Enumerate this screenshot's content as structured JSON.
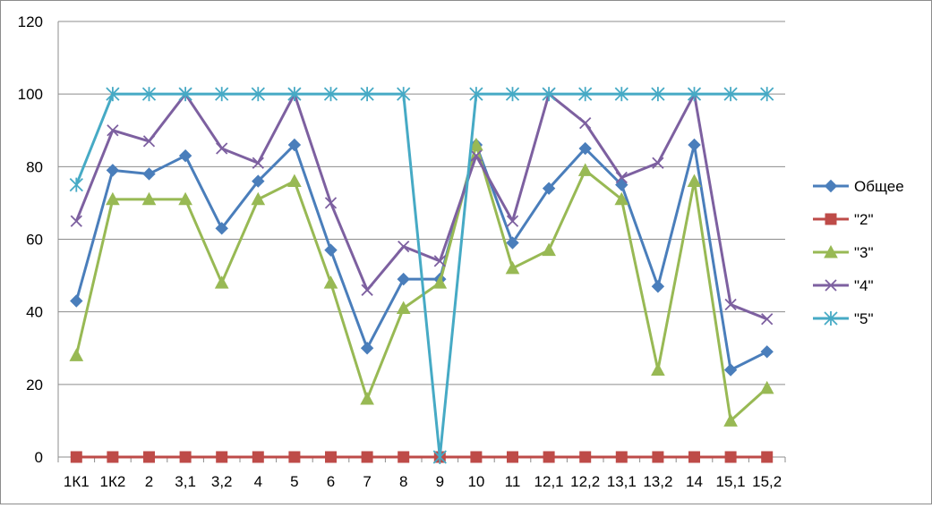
{
  "chart_data": {
    "type": "line",
    "title": "",
    "xlabel": "",
    "ylabel": "",
    "ylim": [
      0,
      120
    ],
    "yticks": [
      "0",
      "20",
      "40",
      "60",
      "80",
      "100",
      "120"
    ],
    "grid": "horizontal",
    "legend_position": "right",
    "categories": [
      "1К1",
      "1К2",
      "2",
      "3,1",
      "3,2",
      "4",
      "5",
      "6",
      "7",
      "8",
      "9",
      "10",
      "11",
      "12,1",
      "12,2",
      "13,1",
      "13,2",
      "14",
      "15,1",
      "15,2"
    ],
    "series": [
      {
        "name": "Общее",
        "color": "#4a7ebb",
        "marker": "diamond",
        "values": [
          43,
          79,
          78,
          83,
          63,
          76,
          86,
          57,
          30,
          49,
          49,
          86,
          59,
          74,
          85,
          75,
          47,
          86,
          24,
          29
        ]
      },
      {
        "name": "\"2\"",
        "color": "#be4b48",
        "marker": "square",
        "values": [
          0,
          0,
          0,
          0,
          0,
          0,
          0,
          0,
          0,
          0,
          0,
          0,
          0,
          0,
          0,
          0,
          0,
          0,
          0,
          0
        ]
      },
      {
        "name": "\"3\"",
        "color": "#98b954",
        "marker": "triangle",
        "values": [
          28,
          71,
          71,
          71,
          48,
          71,
          76,
          48,
          16,
          41,
          48,
          86,
          52,
          57,
          79,
          71,
          24,
          76,
          10,
          19
        ]
      },
      {
        "name": "\"4\"",
        "color": "#7d60a0",
        "marker": "x",
        "values": [
          65,
          90,
          87,
          100,
          85,
          81,
          100,
          70,
          46,
          58,
          54,
          83,
          65,
          100,
          92,
          77,
          81,
          100,
          42,
          38
        ]
      },
      {
        "name": "\"5\"",
        "color": "#46aac5",
        "marker": "star",
        "values": [
          75,
          100,
          100,
          100,
          100,
          100,
          100,
          100,
          100,
          100,
          0,
          100,
          100,
          100,
          100,
          100,
          100,
          100,
          100,
          100
        ]
      }
    ]
  }
}
